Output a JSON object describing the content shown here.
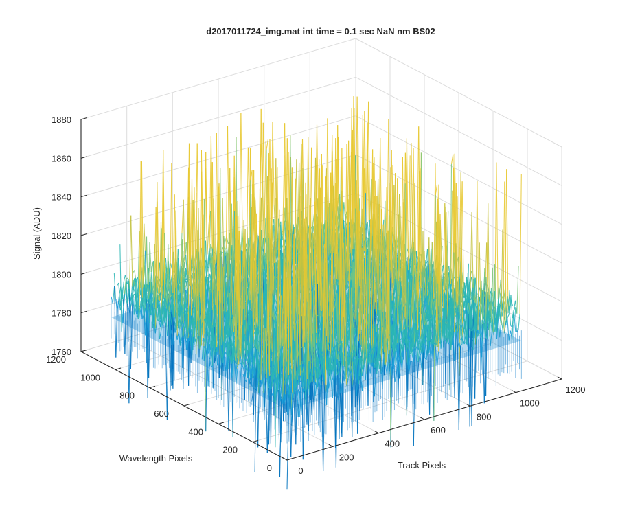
{
  "chart_data": {
    "type": "surface",
    "title": "d2017011724_img.mat int time = 0.1 sec  NaN nm BS02",
    "xlabel": "Track Pixels",
    "ylabel": "Wavelength Pixels",
    "zlabel": "Signal (ADU)",
    "xlim": [
      0,
      1200
    ],
    "ylim": [
      0,
      1200
    ],
    "zlim": [
      1760,
      1880
    ],
    "x_ticks": [
      "0",
      "200",
      "400",
      "600",
      "800",
      "1000",
      "1200"
    ],
    "y_ticks": [
      "0",
      "200",
      "400",
      "600",
      "800",
      "1000",
      "1200"
    ],
    "z_ticks": [
      "1760",
      "1780",
      "1800",
      "1820",
      "1840",
      "1860",
      "1880"
    ],
    "data_extent": {
      "x": [
        0,
        1024
      ],
      "y": [
        0,
        1024
      ]
    },
    "z_baseline": 1800,
    "z_typical_range": [
      1775,
      1835
    ],
    "z_peak_max": 1872,
    "z_trough_min": 1745,
    "colormap": "parula",
    "colors": [
      "#0072bd",
      "#1a9fd8",
      "#2bb6b4",
      "#7cc77b",
      "#c3c23f",
      "#e8c830"
    ],
    "grid": true
  }
}
